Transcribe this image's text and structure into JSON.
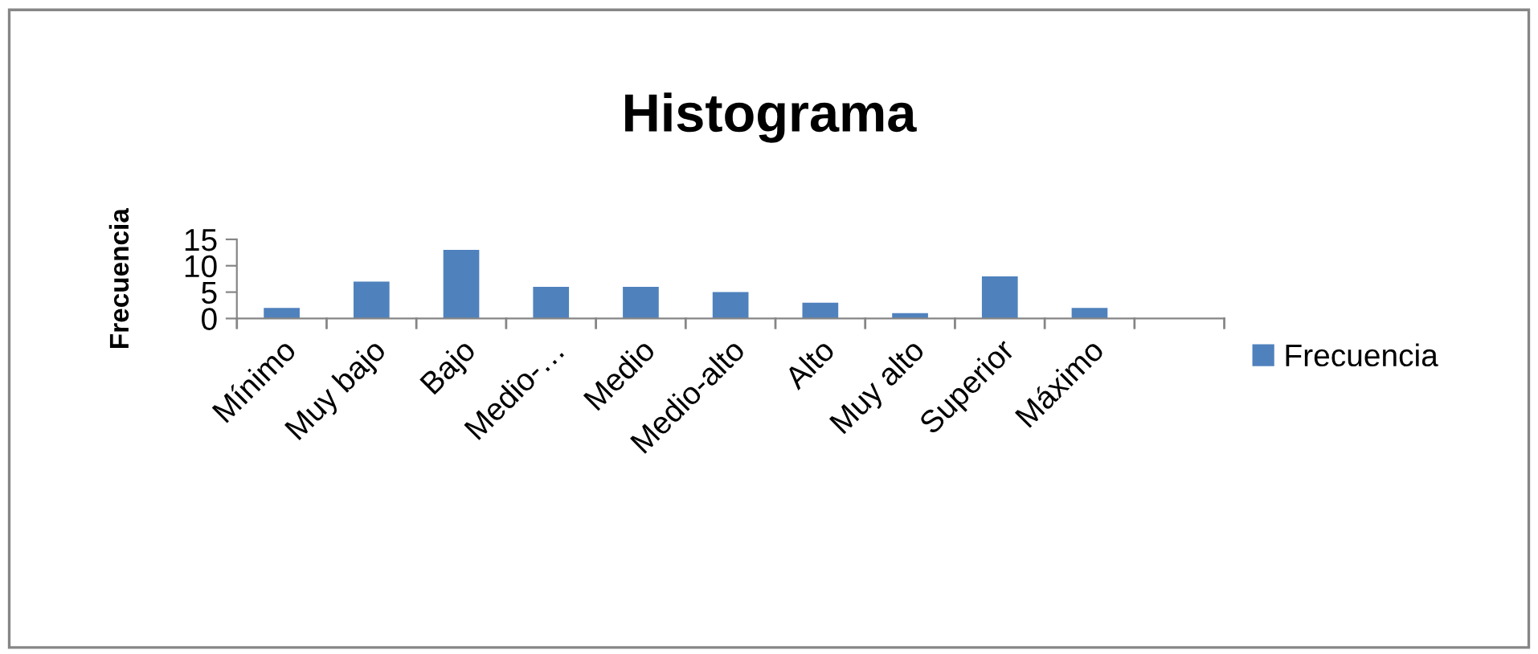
{
  "chart_data": {
    "type": "bar",
    "title": "Histograma",
    "ylabel": "Frecuencia",
    "categories": [
      "Mínimo",
      "Muy bajo",
      "Bajo",
      "Medio-…",
      "Medio",
      "Medio-alto",
      "Alto",
      "Muy alto",
      "Superior",
      "Máximo",
      null
    ],
    "series": [
      {
        "name": "Frecuencia",
        "color": "#4f81bd",
        "values": [
          2,
          7,
          13,
          6,
          6,
          5,
          3,
          1,
          8,
          2,
          null
        ]
      }
    ],
    "ylim": [
      0,
      15
    ],
    "yticks": [
      0,
      5,
      10,
      15
    ],
    "grid": false,
    "legend": "right"
  }
}
